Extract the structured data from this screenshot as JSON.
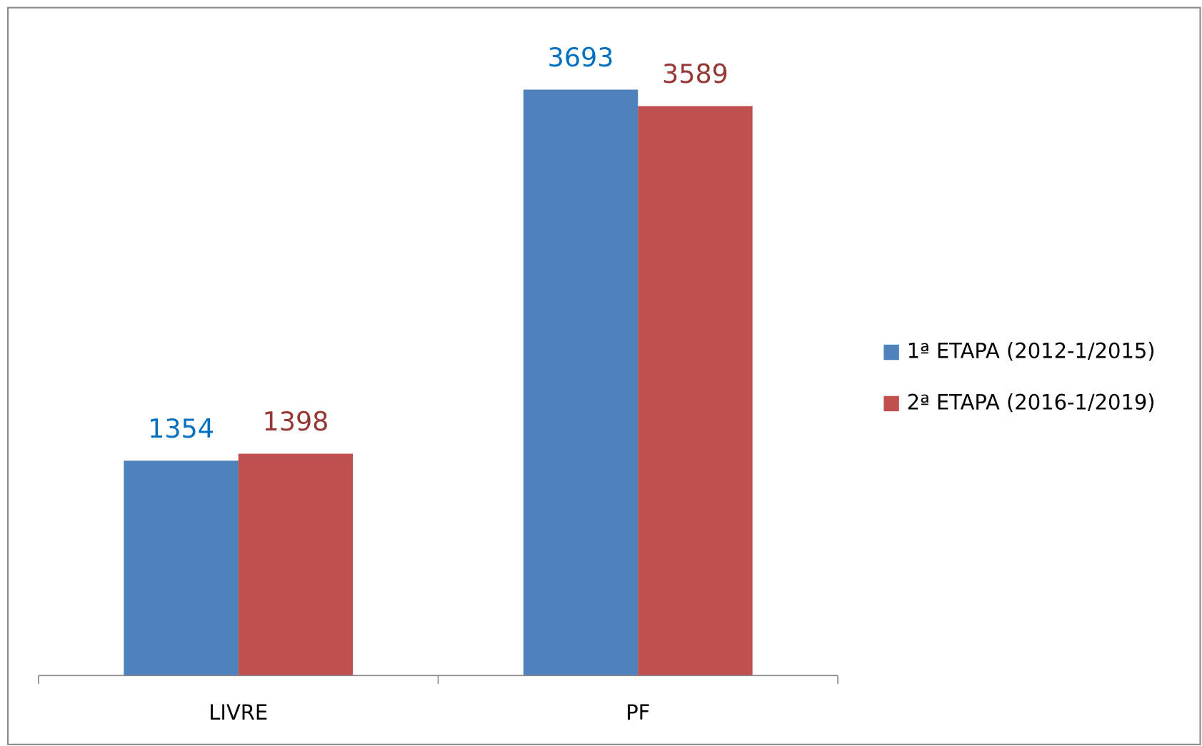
{
  "chart_data": {
    "type": "bar",
    "categories": [
      "LIVRE",
      "PF"
    ],
    "series": [
      {
        "name": "1ª ETAPA (2012-1/2015)",
        "color": "#4f81bd",
        "label_color": "#0070c0",
        "values": [
          1354,
          3693
        ]
      },
      {
        "name": "2ª ETAPA (2016-1/2019)",
        "color": "#c0504d",
        "label_color": "#953735",
        "values": [
          1398,
          3589
        ]
      }
    ],
    "legend": "right"
  }
}
